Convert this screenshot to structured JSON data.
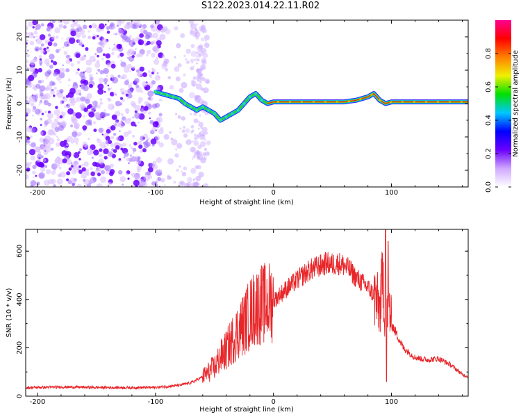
{
  "title": "S122.2023.014.22.11.R02",
  "colors": {
    "snr_line": "#e8262a",
    "scatter_purple": "#6a00ff",
    "ridge_red": "#e02020",
    "ridge_green": "#30d030"
  },
  "chart_data": [
    {
      "type": "heatmap",
      "title": "",
      "xlabel": "Height of straight line (km)",
      "ylabel": "Frequency (Hz)",
      "xlim": [
        -210,
        165
      ],
      "ylim": [
        -25,
        25
      ],
      "xticks": [
        -200,
        -100,
        0,
        100
      ],
      "yticks": [
        -20,
        -10,
        0,
        10,
        20
      ],
      "colorbar": {
        "label": "Normalized spectral amplitude",
        "range": [
          0.0,
          1.0
        ],
        "ticks": [
          "0.0",
          "0.2",
          "0.4",
          "0.6",
          "0.8"
        ],
        "tick_values": [
          0.0,
          0.2,
          0.4,
          0.6,
          0.8
        ],
        "palette": [
          "#ffffff",
          "#d0a8ff",
          "#6a00ff",
          "#0000ff",
          "#00c8ff",
          "#00e000",
          "#f0f000",
          "#ff8000",
          "#ff0000",
          "#ff0090"
        ]
      },
      "noise_region_x": [
        -210,
        -55
      ],
      "ridge": {
        "x": [
          -100,
          -95,
          -90,
          -85,
          -80,
          -75,
          -70,
          -65,
          -60,
          -55,
          -50,
          -45,
          -40,
          -35,
          -30,
          -25,
          -20,
          -15,
          -10,
          -5,
          0,
          10,
          20,
          30,
          40,
          50,
          60,
          70,
          80,
          85,
          90,
          95,
          100,
          110,
          120,
          140,
          165
        ],
        "y": [
          3.5,
          3,
          2.5,
          2,
          1.5,
          0,
          -1,
          -2,
          -1,
          -2,
          -3,
          -5,
          -4,
          -3,
          -2,
          0,
          2,
          3,
          1,
          0,
          0.5,
          0.5,
          0.5,
          0.5,
          0.5,
          0.5,
          0.5,
          1,
          2,
          3,
          1,
          0,
          0.5,
          0.5,
          0.5,
          0.5,
          0.5
        ]
      }
    },
    {
      "type": "line",
      "title": "",
      "xlabel": "Height of straight line (km)",
      "ylabel": "SNR (10 * v/v)",
      "xlim": [
        -210,
        165
      ],
      "ylim": [
        0,
        690
      ],
      "xticks": [
        -200,
        -100,
        0,
        100
      ],
      "yticks": [
        0,
        200,
        400,
        600
      ],
      "series": [
        {
          "x": [
            -210,
            -180,
            -150,
            -120,
            -100,
            -90,
            -80,
            -70,
            -60,
            -55,
            -50,
            -45,
            -40,
            -35,
            -30,
            -25,
            -20,
            -15,
            -10,
            -5,
            0,
            10,
            20,
            30,
            40,
            45,
            50,
            55,
            60,
            65,
            70,
            75,
            80,
            85,
            90,
            93,
            95,
            97,
            100,
            105,
            110,
            115,
            120,
            130,
            140,
            150,
            160,
            165
          ],
          "y": [
            35,
            38,
            36,
            35,
            36,
            40,
            45,
            55,
            80,
            100,
            120,
            160,
            190,
            230,
            270,
            300,
            340,
            370,
            380,
            385,
            395,
            440,
            480,
            520,
            540,
            550,
            545,
            550,
            540,
            520,
            490,
            470,
            450,
            420,
            360,
            500,
            210,
            400,
            300,
            250,
            200,
            180,
            160,
            150,
            155,
            130,
            90,
            80
          ]
        }
      ]
    }
  ]
}
